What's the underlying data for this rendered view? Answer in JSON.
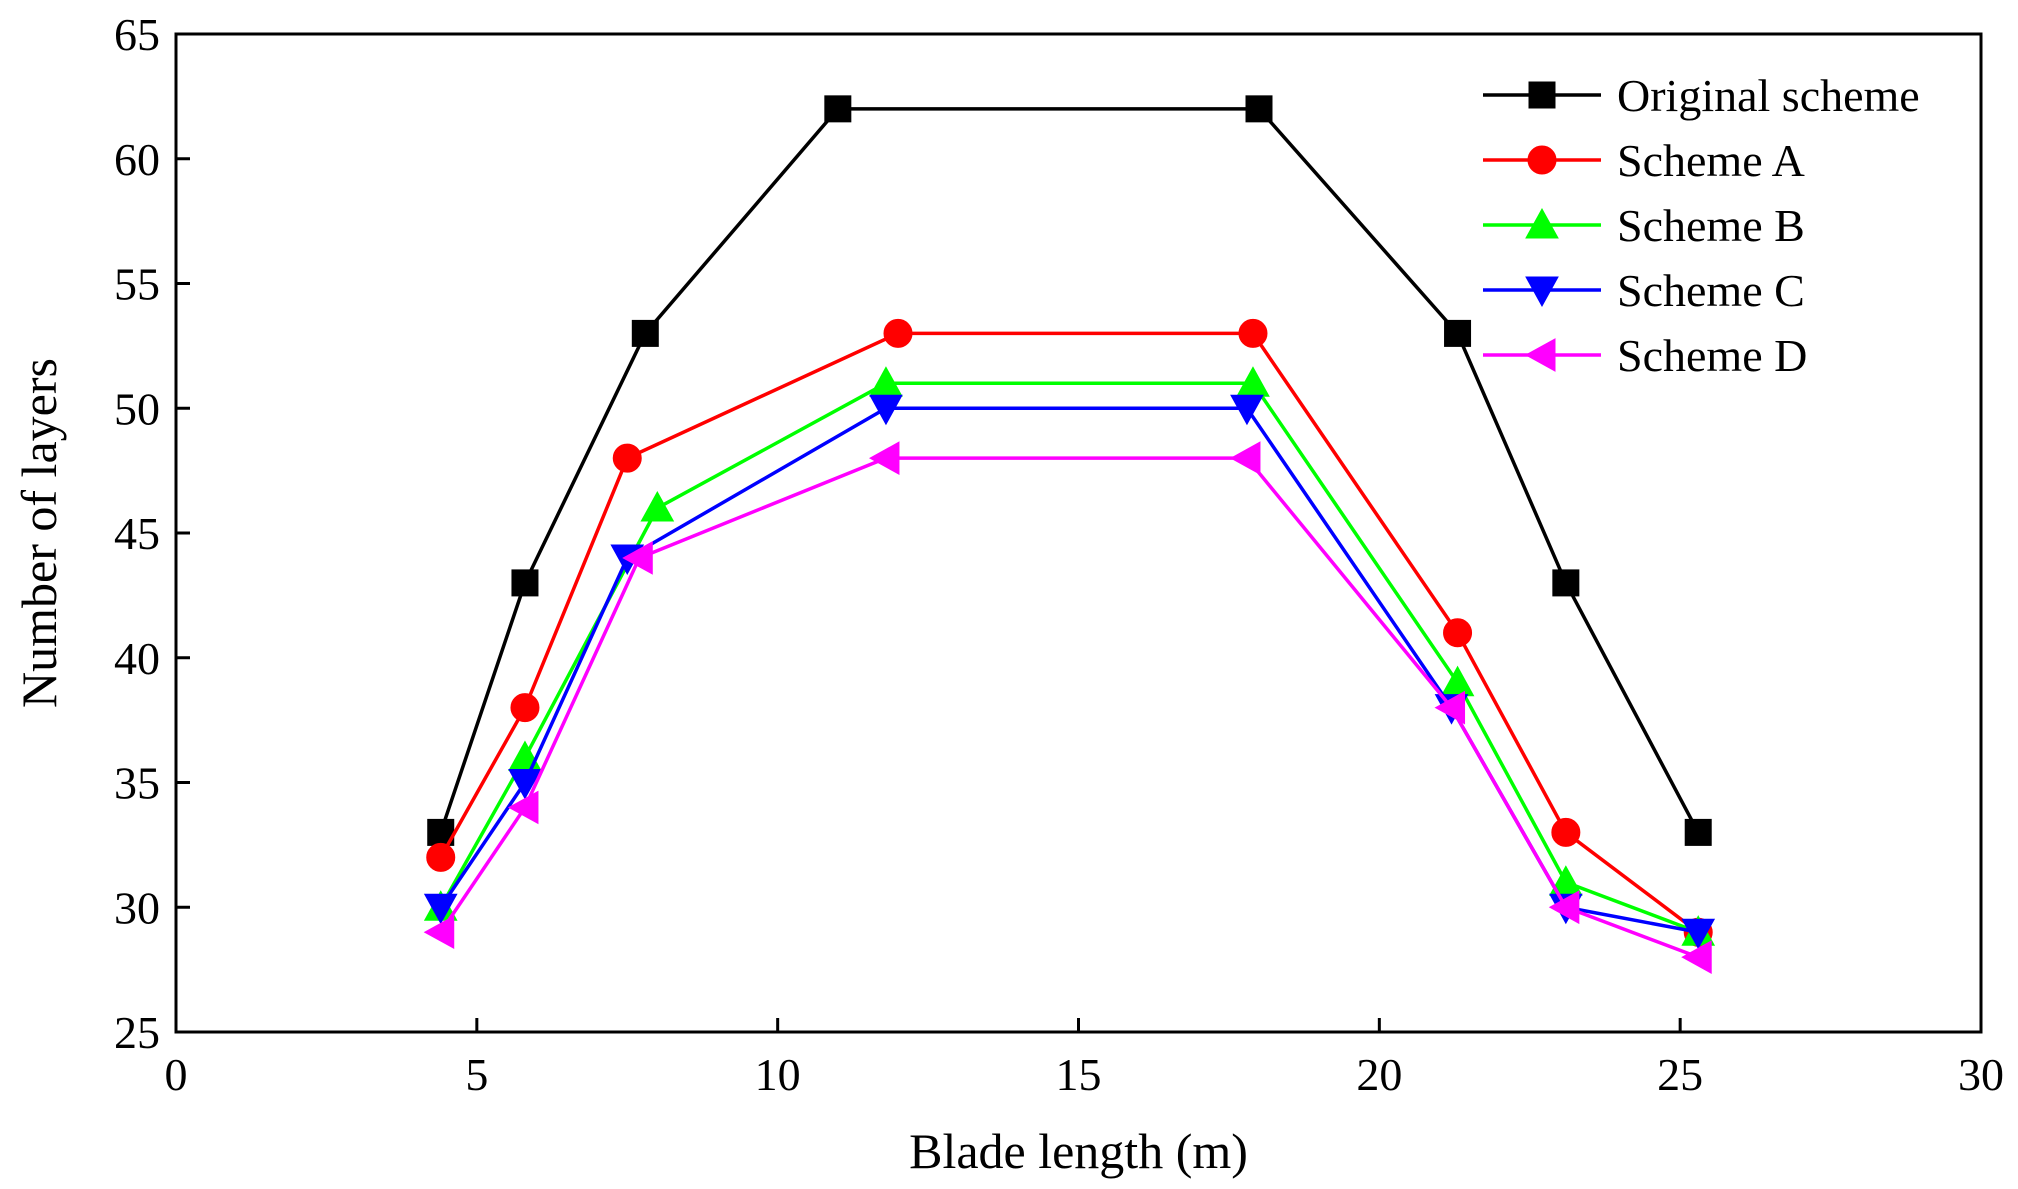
{
  "chart_data": {
    "type": "line",
    "title": "",
    "xlabel": "Blade length (m)",
    "ylabel": "Number of layers",
    "xlim": [
      0,
      30
    ],
    "ylim": [
      25,
      65
    ],
    "xticks": [
      0,
      5,
      10,
      15,
      20,
      25,
      30
    ],
    "yticks": [
      25,
      30,
      35,
      40,
      45,
      50,
      55,
      60,
      65
    ],
    "grid": false,
    "legend_position": "top-right",
    "series": [
      {
        "name": "Original scheme",
        "color": "#000000",
        "marker": "square",
        "x": [
          4.4,
          5.8,
          7.8,
          11.0,
          18.0,
          21.3,
          23.1,
          25.3
        ],
        "y": [
          33,
          43,
          53,
          62,
          62,
          53,
          43,
          33
        ]
      },
      {
        "name": "Scheme A",
        "color": "#ff0000",
        "marker": "circle",
        "x": [
          4.4,
          5.8,
          7.5,
          12.0,
          17.9,
          21.3,
          23.1,
          25.3
        ],
        "y": [
          32,
          38,
          48,
          53,
          53,
          41,
          33,
          29
        ]
      },
      {
        "name": "Scheme B",
        "color": "#00ff00",
        "marker": "triangle-up",
        "x": [
          4.4,
          5.8,
          8.0,
          11.8,
          17.9,
          21.3,
          23.1,
          25.3
        ],
        "y": [
          30,
          36,
          46,
          51,
          51,
          39,
          31,
          29
        ]
      },
      {
        "name": "Scheme C",
        "color": "#0000ff",
        "marker": "triangle-down",
        "x": [
          4.4,
          5.8,
          7.5,
          11.8,
          17.8,
          21.2,
          23.1,
          25.3
        ],
        "y": [
          30,
          35,
          44,
          50,
          50,
          38,
          30,
          29
        ]
      },
      {
        "name": "Scheme D",
        "color": "#ff00ff",
        "marker": "triangle-left",
        "x": [
          4.4,
          5.8,
          7.7,
          11.8,
          17.8,
          21.2,
          23.1,
          25.3
        ],
        "y": [
          29,
          34,
          44,
          48,
          48,
          38,
          30,
          28
        ]
      }
    ]
  }
}
